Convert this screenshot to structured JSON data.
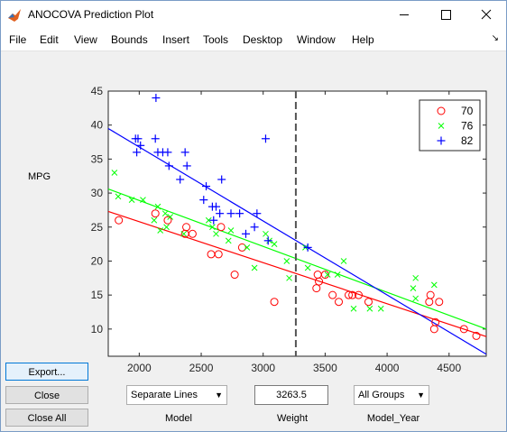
{
  "window": {
    "title": "ANOCOVA Prediction Plot"
  },
  "menu": [
    "File",
    "Edit",
    "View",
    "Bounds",
    "Insert",
    "Tools",
    "Desktop",
    "Window",
    "Help"
  ],
  "ylabel": "MPG",
  "chart_data": {
    "type": "scatter",
    "xlabel": "Weight",
    "ylabel": "MPG",
    "xlim": [
      1750,
      4800
    ],
    "ylim": [
      6,
      45
    ],
    "xticks": [
      "2000",
      "2500",
      "3000",
      "3500",
      "4000",
      "4500"
    ],
    "yticks": [
      "10",
      "15",
      "20",
      "25",
      "30",
      "35",
      "40",
      "45"
    ],
    "legend_position": "top-right",
    "vertical_reference_x": 3263.5,
    "series": [
      {
        "name": "70",
        "marker": "o",
        "color": "#ff0000",
        "line": [
          [
            1750,
            27.3
          ],
          [
            4800,
            8.9
          ]
        ],
        "points": [
          [
            1835,
            26
          ],
          [
            2130,
            27
          ],
          [
            2230,
            26
          ],
          [
            2370,
            24
          ],
          [
            2380,
            25
          ],
          [
            2430,
            24
          ],
          [
            2580,
            21
          ],
          [
            2640,
            21
          ],
          [
            2660,
            25
          ],
          [
            2770,
            18
          ],
          [
            2830,
            22
          ],
          [
            3090,
            14
          ],
          [
            3430,
            16
          ],
          [
            3440,
            18
          ],
          [
            3450,
            17
          ],
          [
            3500,
            18
          ],
          [
            3560,
            15
          ],
          [
            3610,
            14
          ],
          [
            3690,
            15
          ],
          [
            3720,
            15
          ],
          [
            3770,
            15
          ],
          [
            3850,
            14
          ],
          [
            4340,
            14
          ],
          [
            4350,
            15
          ],
          [
            4380,
            10
          ],
          [
            4390,
            11
          ],
          [
            4420,
            14
          ],
          [
            4620,
            10
          ],
          [
            4720,
            9
          ]
        ]
      },
      {
        "name": "76",
        "marker": "x",
        "color": "#00ff00",
        "line": [
          [
            1750,
            30.6
          ],
          [
            4800,
            10
          ]
        ],
        "points": [
          [
            1800,
            33
          ],
          [
            1830,
            29.5
          ],
          [
            1940,
            29
          ],
          [
            2030,
            29
          ],
          [
            2120,
            26
          ],
          [
            2150,
            28
          ],
          [
            2170,
            24.5
          ],
          [
            2210,
            27
          ],
          [
            2220,
            25
          ],
          [
            2250,
            26.5
          ],
          [
            2360,
            24
          ],
          [
            2560,
            26
          ],
          [
            2590,
            25
          ],
          [
            2620,
            24
          ],
          [
            2720,
            23
          ],
          [
            2740,
            24.5
          ],
          [
            2870,
            22
          ],
          [
            2930,
            19
          ],
          [
            3020,
            24
          ],
          [
            3050,
            23
          ],
          [
            3090,
            22.5
          ],
          [
            3190,
            20
          ],
          [
            3210,
            17.5
          ],
          [
            3340,
            22
          ],
          [
            3360,
            19
          ],
          [
            3520,
            18
          ],
          [
            3600,
            18
          ],
          [
            3650,
            20
          ],
          [
            3730,
            13
          ],
          [
            3860,
            13
          ],
          [
            3950,
            13
          ],
          [
            4210,
            16
          ],
          [
            4230,
            17.5
          ],
          [
            4230,
            14.5
          ],
          [
            4380,
            16.5
          ]
        ]
      },
      {
        "name": "82",
        "marker": "+",
        "color": "#0000ff",
        "line": [
          [
            1750,
            39.5
          ],
          [
            4800,
            6.3
          ]
        ],
        "points": [
          [
            1970,
            38
          ],
          [
            1980,
            36
          ],
          [
            1990,
            38
          ],
          [
            2010,
            37
          ],
          [
            2130,
            38
          ],
          [
            2135,
            44
          ],
          [
            2150,
            36
          ],
          [
            2190,
            36
          ],
          [
            2230,
            36
          ],
          [
            2240,
            34
          ],
          [
            2330,
            32
          ],
          [
            2370,
            36
          ],
          [
            2385,
            34
          ],
          [
            2520,
            29
          ],
          [
            2540,
            31
          ],
          [
            2590,
            28
          ],
          [
            2600,
            26
          ],
          [
            2620,
            28
          ],
          [
            2650,
            27
          ],
          [
            2665,
            32
          ],
          [
            2740,
            27
          ],
          [
            2810,
            27
          ],
          [
            2860,
            24
          ],
          [
            2930,
            25
          ],
          [
            2950,
            27
          ],
          [
            3020,
            38
          ],
          [
            3040,
            23
          ],
          [
            3360,
            22
          ]
        ]
      }
    ]
  },
  "buttons": {
    "export": "Export...",
    "close": "Close",
    "close_all": "Close All"
  },
  "controls": {
    "model_value": "Separate Lines",
    "weight_value": "3263.5",
    "group_value": "All Groups",
    "model_label": "Model",
    "weight_label": "Weight",
    "group_label": "Model_Year"
  }
}
